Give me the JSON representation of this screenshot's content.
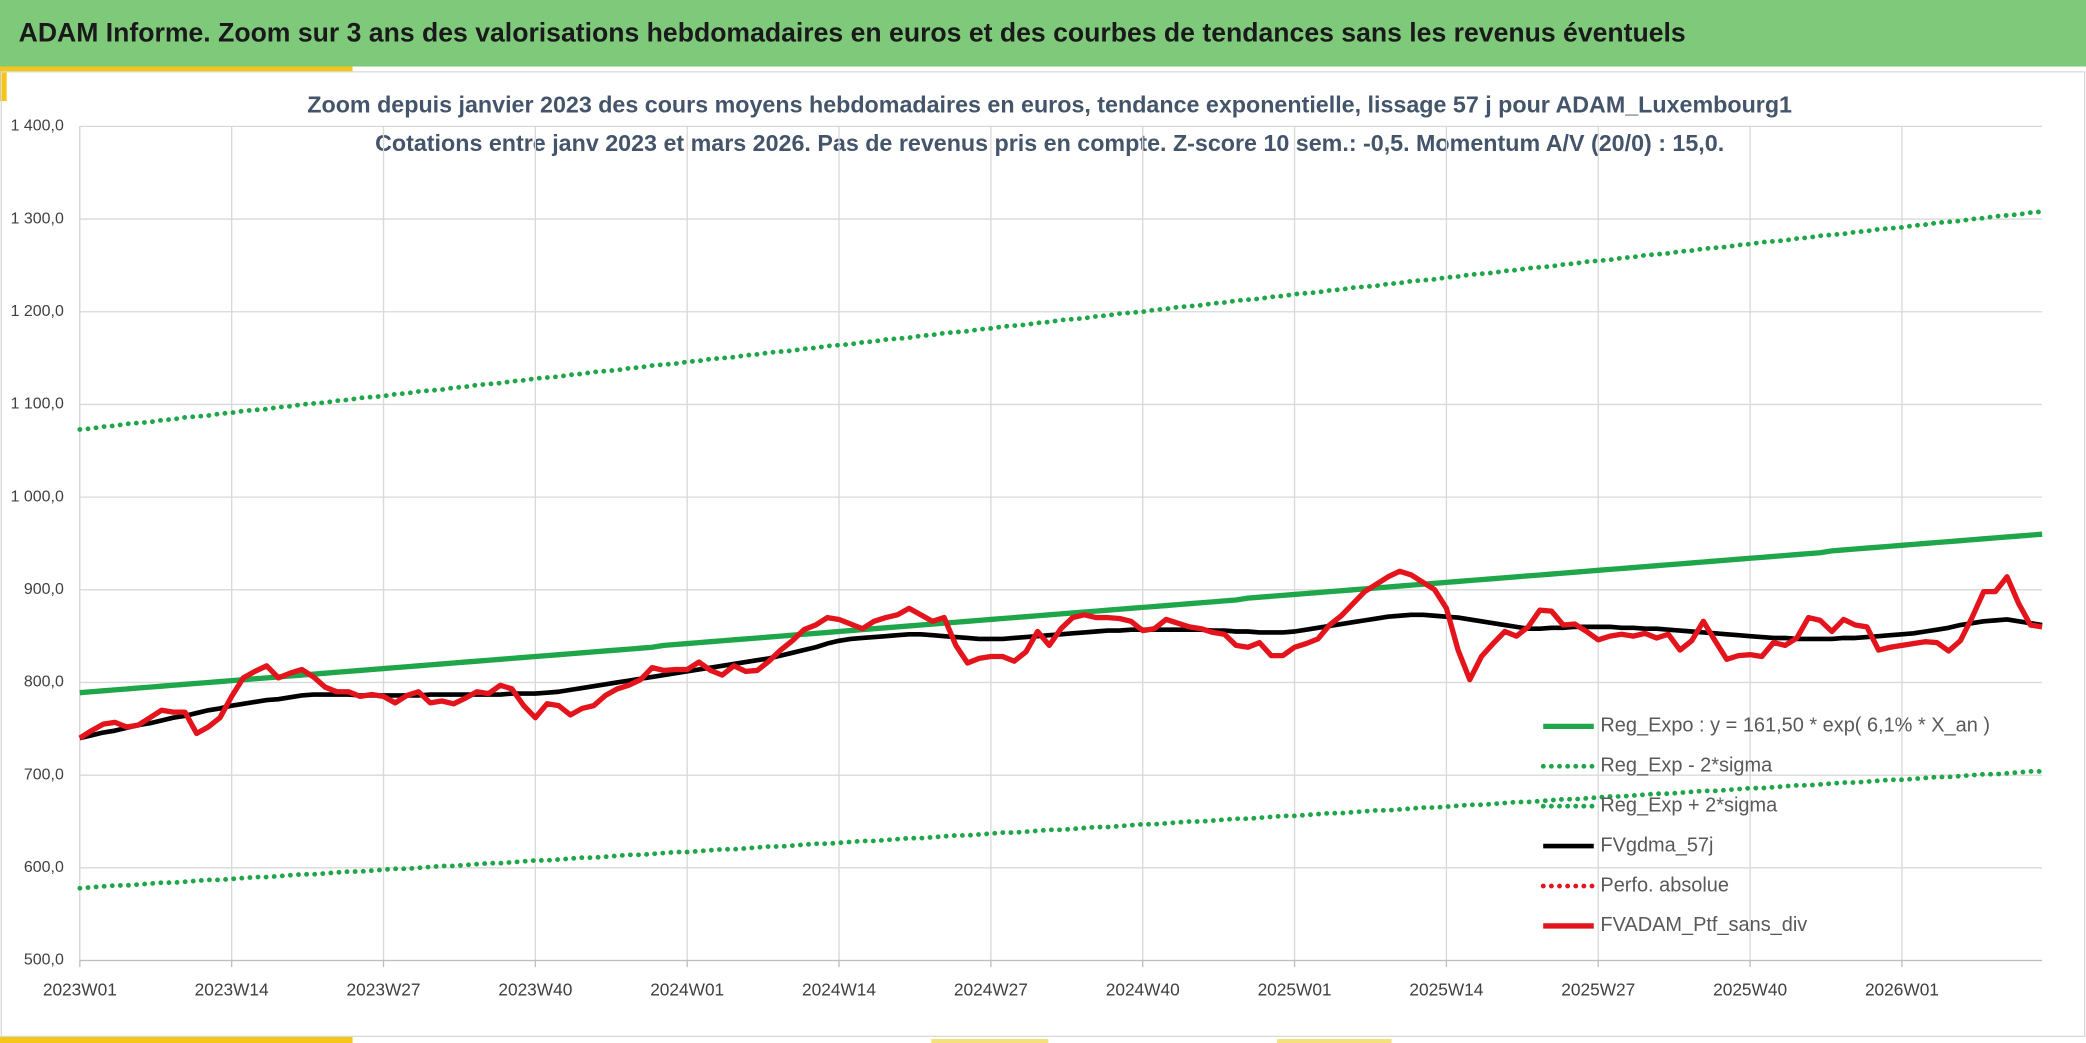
{
  "header": {
    "title": "ADAM Informe. Zoom sur 3 ans des valorisations hebdomadaires en euros et des courbes de tendances sans les revenus éventuels"
  },
  "chart_data": {
    "type": "line",
    "title": "Zoom depuis janvier 2023 des cours moyens hebdomadaires en euros, tendance exponentielle, lissage 57 j pour ADAM_Luxembourg1",
    "subtitle": "Cotations entre janv 2023 et mars 2026. Pas de revenus pris en compte. Z-score 10 sem.: -0,5. Momentum A/V (20/0) : 15,0.",
    "grid": true,
    "legend": "lower right",
    "ylim": [
      500,
      1400
    ],
    "yticks": [
      {
        "value": 500,
        "label": "500,0"
      },
      {
        "value": 600,
        "label": "600,0"
      },
      {
        "value": 700,
        "label": "700,0"
      },
      {
        "value": 800,
        "label": "800,0"
      },
      {
        "value": 900,
        "label": "900,0"
      },
      {
        "value": 1000,
        "label": "1 000,0"
      },
      {
        "value": 1100,
        "label": "1 100,0"
      },
      {
        "value": 1200,
        "label": "1 200,0"
      },
      {
        "value": 1300,
        "label": "1 300,0"
      },
      {
        "value": 1400,
        "label": "1 400,0"
      }
    ],
    "categories": [
      "2023W01",
      null,
      null,
      null,
      null,
      null,
      null,
      null,
      null,
      null,
      null,
      null,
      null,
      "2023W14",
      null,
      null,
      null,
      null,
      null,
      null,
      null,
      null,
      null,
      null,
      null,
      null,
      "2023W27",
      null,
      null,
      null,
      null,
      null,
      null,
      null,
      null,
      null,
      null,
      null,
      null,
      "2023W40",
      null,
      null,
      null,
      null,
      null,
      null,
      null,
      null,
      null,
      null,
      null,
      null,
      "2024W01",
      null,
      null,
      null,
      null,
      null,
      null,
      null,
      null,
      null,
      null,
      null,
      null,
      "2024W14",
      null,
      null,
      null,
      null,
      null,
      null,
      null,
      null,
      null,
      null,
      null,
      null,
      "2024W27",
      null,
      null,
      null,
      null,
      null,
      null,
      null,
      null,
      null,
      null,
      null,
      null,
      "2024W40",
      null,
      null,
      null,
      null,
      null,
      null,
      null,
      null,
      null,
      null,
      null,
      null,
      "2025W01",
      null,
      null,
      null,
      null,
      null,
      null,
      null,
      null,
      null,
      null,
      null,
      null,
      "2025W14",
      null,
      null,
      null,
      null,
      null,
      null,
      null,
      null,
      null,
      null,
      null,
      null,
      "2025W27",
      null,
      null,
      null,
      null,
      null,
      null,
      null,
      null,
      null,
      null,
      null,
      null,
      "2025W40",
      null,
      null,
      null,
      null,
      null,
      null,
      null,
      null,
      null,
      null,
      null,
      null,
      "2026W01",
      null,
      null,
      null,
      null,
      null,
      null,
      null,
      null,
      null,
      null,
      null,
      null
    ],
    "series": [
      {
        "name": "Reg_Expo : y = 161,50 * exp( 6,1% *  X_an )",
        "color": "#1fa64a",
        "style": "solid",
        "values": [
          789,
          790,
          791,
          792,
          793,
          794,
          795,
          796,
          797,
          798,
          799,
          800,
          801,
          802,
          803,
          804,
          805,
          806,
          807,
          808,
          809,
          810,
          811,
          812,
          813,
          814,
          815,
          816,
          817,
          818,
          819,
          820,
          821,
          822,
          823,
          824,
          825,
          826,
          827,
          828,
          829,
          830,
          831,
          832,
          833,
          834,
          835,
          836,
          837,
          838,
          840,
          841,
          842,
          843,
          844,
          845,
          846,
          847,
          848,
          849,
          850,
          851,
          852,
          853,
          854,
          855,
          856,
          857,
          858,
          859,
          860,
          861,
          862,
          863,
          864,
          865,
          866,
          867,
          868,
          869,
          870,
          871,
          872,
          873,
          874,
          875,
          876,
          877,
          878,
          879,
          880,
          881,
          882,
          883,
          884,
          885,
          886,
          887,
          888,
          889,
          891,
          892,
          893,
          894,
          895,
          896,
          897,
          898,
          899,
          900,
          901,
          902,
          903,
          904,
          905,
          906,
          907,
          908,
          909,
          910,
          911,
          912,
          913,
          914,
          915,
          916,
          917,
          918,
          919,
          920,
          921,
          922,
          923,
          924,
          925,
          926,
          927,
          928,
          929,
          930,
          931,
          932,
          933,
          934,
          935,
          936,
          937,
          938,
          939,
          940,
          942,
          943,
          944,
          945,
          946,
          947,
          948,
          949,
          950,
          951,
          952,
          953,
          954,
          955,
          956,
          957,
          958,
          959,
          960
        ]
      },
      {
        "name": "Reg_Exp - 2*sigma",
        "color": "#1fa64a",
        "style": "dotted",
        "values": [
          578,
          579,
          580,
          581,
          581,
          582,
          583,
          584,
          584,
          585,
          586,
          587,
          587,
          588,
          589,
          590,
          590,
          591,
          592,
          593,
          593,
          594,
          595,
          596,
          596,
          597,
          598,
          599,
          599,
          600,
          601,
          602,
          602,
          603,
          604,
          605,
          605,
          606,
          607,
          608,
          608,
          609,
          610,
          611,
          611,
          612,
          613,
          614,
          614,
          615,
          616,
          617,
          617,
          618,
          619,
          620,
          620,
          621,
          622,
          623,
          623,
          624,
          625,
          626,
          626,
          627,
          628,
          629,
          629,
          630,
          631,
          632,
          632,
          633,
          634,
          635,
          635,
          636,
          637,
          638,
          638,
          639,
          640,
          641,
          641,
          642,
          643,
          644,
          644,
          645,
          646,
          647,
          647,
          648,
          649,
          650,
          650,
          651,
          652,
          653,
          653,
          654,
          655,
          656,
          656,
          657,
          658,
          659,
          659,
          660,
          661,
          662,
          662,
          663,
          664,
          665,
          665,
          666,
          667,
          668,
          668,
          669,
          670,
          671,
          671,
          672,
          673,
          674,
          674,
          675,
          676,
          677,
          677,
          678,
          679,
          680,
          680,
          681,
          682,
          683,
          683,
          684,
          685,
          686,
          686,
          687,
          688,
          689,
          689,
          690,
          691,
          692,
          692,
          693,
          694,
          695,
          695,
          696,
          697,
          698,
          698,
          699,
          700,
          701,
          701,
          702,
          703,
          704,
          704
        ]
      },
      {
        "name": "Reg_Exp + 2*sigma",
        "color": "#1fa64a",
        "style": "dotted",
        "values": [
          1073,
          1074,
          1076,
          1077,
          1079,
          1080,
          1081,
          1083,
          1084,
          1086,
          1087,
          1088,
          1090,
          1091,
          1093,
          1094,
          1095,
          1097,
          1098,
          1100,
          1101,
          1102,
          1104,
          1105,
          1107,
          1108,
          1109,
          1111,
          1112,
          1114,
          1115,
          1116,
          1118,
          1119,
          1121,
          1122,
          1123,
          1125,
          1126,
          1128,
          1129,
          1130,
          1132,
          1133,
          1135,
          1136,
          1137,
          1139,
          1140,
          1142,
          1143,
          1144,
          1146,
          1147,
          1149,
          1150,
          1151,
          1153,
          1154,
          1156,
          1157,
          1158,
          1160,
          1161,
          1163,
          1164,
          1165,
          1167,
          1168,
          1170,
          1171,
          1172,
          1174,
          1175,
          1177,
          1178,
          1179,
          1181,
          1182,
          1184,
          1185,
          1186,
          1188,
          1189,
          1191,
          1192,
          1193,
          1195,
          1196,
          1198,
          1199,
          1200,
          1202,
          1203,
          1205,
          1206,
          1207,
          1209,
          1210,
          1212,
          1213,
          1214,
          1216,
          1217,
          1219,
          1220,
          1221,
          1223,
          1224,
          1226,
          1227,
          1228,
          1230,
          1231,
          1233,
          1234,
          1235,
          1237,
          1238,
          1240,
          1241,
          1242,
          1244,
          1245,
          1247,
          1248,
          1249,
          1251,
          1252,
          1254,
          1255,
          1256,
          1258,
          1259,
          1261,
          1262,
          1263,
          1265,
          1266,
          1268,
          1269,
          1270,
          1272,
          1273,
          1275,
          1276,
          1277,
          1279,
          1280,
          1282,
          1283,
          1284,
          1286,
          1287,
          1289,
          1290,
          1291,
          1293,
          1294,
          1296,
          1297,
          1298,
          1300,
          1301,
          1303,
          1304,
          1305,
          1307,
          1308
        ]
      },
      {
        "name": "FVgdma_57j",
        "color": "#000000",
        "style": "solid",
        "values": [
          740,
          743,
          746,
          748,
          751,
          754,
          756,
          759,
          762,
          764,
          767,
          770,
          772,
          775,
          777,
          779,
          781,
          782,
          784,
          786,
          787,
          787,
          787,
          787,
          786,
          786,
          786,
          786,
          786,
          786,
          787,
          787,
          787,
          787,
          787,
          787,
          787,
          788,
          788,
          788,
          789,
          790,
          792,
          794,
          796,
          798,
          800,
          802,
          804,
          806,
          808,
          810,
          812,
          814,
          816,
          818,
          820,
          822,
          824,
          826,
          829,
          832,
          835,
          838,
          842,
          845,
          847,
          848,
          849,
          850,
          851,
          852,
          852,
          851,
          850,
          849,
          848,
          847,
          847,
          847,
          848,
          849,
          850,
          851,
          852,
          853,
          854,
          855,
          856,
          856,
          857,
          857,
          857,
          857,
          857,
          857,
          857,
          856,
          856,
          855,
          855,
          854,
          854,
          854,
          855,
          857,
          859,
          861,
          863,
          865,
          867,
          869,
          871,
          872,
          873,
          873,
          872,
          871,
          870,
          868,
          866,
          864,
          862,
          860,
          858,
          858,
          859,
          859,
          860,
          860,
          860,
          860,
          859,
          859,
          858,
          858,
          857,
          856,
          855,
          854,
          853,
          852,
          851,
          850,
          849,
          848,
          848,
          847,
          847,
          847,
          847,
          848,
          848,
          849,
          850,
          851,
          852,
          853,
          855,
          857,
          859,
          862,
          864,
          866,
          867,
          868,
          866,
          864,
          862
        ]
      },
      {
        "name": "Perfo. absolue",
        "color": "#e3141b",
        "style": "dotted",
        "values": [
          null,
          null,
          null,
          null,
          null,
          null,
          null,
          null,
          null,
          null,
          null,
          null,
          null,
          null,
          null,
          null,
          null,
          null,
          null,
          null,
          null,
          null,
          null,
          null,
          null,
          null,
          null,
          null,
          null,
          null,
          null,
          null,
          null,
          null,
          null,
          null,
          null,
          null,
          null,
          null,
          null,
          null,
          null,
          null,
          null,
          null,
          null,
          null,
          null,
          null,
          null,
          null,
          null,
          null,
          null,
          null,
          null,
          null,
          null,
          null,
          null,
          null,
          null,
          null,
          null,
          null,
          null,
          null,
          null,
          null,
          null,
          null,
          null,
          null,
          null,
          null,
          null,
          null,
          null,
          null,
          null,
          null,
          null,
          null,
          null,
          null,
          null,
          null,
          null,
          null,
          null,
          null,
          null,
          null,
          null,
          null,
          null,
          null,
          null,
          null,
          null,
          null,
          null,
          null,
          null,
          null,
          null,
          null,
          null,
          null,
          null,
          null,
          null,
          null,
          null,
          null,
          null,
          null,
          null,
          null,
          null,
          null,
          null,
          null,
          null,
          null,
          null,
          null,
          null,
          null,
          null,
          null,
          null,
          null,
          null,
          null,
          null,
          null,
          null,
          null,
          null,
          null,
          null,
          null,
          null,
          null,
          null,
          null,
          null,
          null,
          null,
          null,
          null,
          null,
          null,
          null,
          null,
          null,
          null,
          null,
          null,
          null,
          null,
          null,
          null,
          null,
          null,
          null,
          null
        ]
      },
      {
        "name": "FVADAM_Ptf_sans_div",
        "color": "#e3141b",
        "style": "solid",
        "values": [
          740,
          748,
          755,
          757,
          752,
          754,
          762,
          770,
          768,
          768,
          745,
          752,
          762,
          785,
          805,
          812,
          818,
          805,
          810,
          814,
          806,
          795,
          790,
          790,
          785,
          787,
          785,
          778,
          786,
          790,
          778,
          780,
          777,
          783,
          790,
          788,
          797,
          793,
          775,
          762,
          777,
          775,
          765,
          772,
          775,
          786,
          793,
          797,
          803,
          816,
          813,
          814,
          814,
          822,
          813,
          808,
          818,
          812,
          813,
          823,
          835,
          845,
          857,
          862,
          870,
          868,
          863,
          858,
          866,
          870,
          873,
          880,
          873,
          866,
          870,
          840,
          821,
          826,
          828,
          828,
          823,
          833,
          855,
          840,
          858,
          870,
          873,
          870,
          870,
          869,
          866,
          856,
          858,
          868,
          864,
          860,
          858,
          854,
          852,
          840,
          838,
          843,
          829,
          829,
          838,
          842,
          847,
          862,
          872,
          885,
          898,
          906,
          914,
          920,
          916,
          908,
          900,
          880,
          835,
          803,
          828,
          842,
          855,
          850,
          860,
          878,
          877,
          862,
          863,
          855,
          846,
          850,
          852,
          850,
          853,
          848,
          852,
          835,
          845,
          866,
          845,
          825,
          829,
          830,
          828,
          843,
          840,
          848,
          870,
          867,
          855,
          868,
          862,
          860,
          835,
          838,
          840,
          842,
          844,
          843,
          834,
          845,
          870,
          898,
          898,
          914,
          885,
          862,
          860
        ]
      }
    ]
  }
}
